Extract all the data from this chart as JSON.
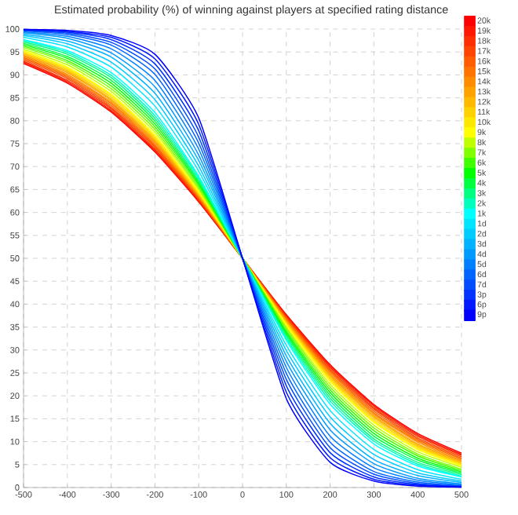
{
  "chart_data": {
    "type": "line",
    "title": "Estimated probability (%) of winning against players at specified rating distance",
    "x": [
      -500,
      -400,
      -300,
      -200,
      -100,
      0,
      100,
      200,
      300,
      400,
      500
    ],
    "xlim": [
      -500,
      500
    ],
    "xticks": [
      -500,
      -400,
      -300,
      -200,
      -100,
      0,
      100,
      200,
      300,
      400,
      500
    ],
    "ylim": [
      0,
      100
    ],
    "yticks": [
      0,
      5,
      10,
      15,
      20,
      25,
      30,
      35,
      40,
      45,
      50,
      55,
      60,
      65,
      70,
      75,
      80,
      85,
      90,
      95,
      100
    ],
    "grid": true,
    "legend": "right",
    "marker": "none",
    "line_style": "solid",
    "series": [
      {
        "name": "20k",
        "color": "#ff0000",
        "values": [
          92.5,
          88.2,
          81.9,
          73.2,
          62.3,
          50,
          37.7,
          26.8,
          18.1,
          11.8,
          7.5
        ]
      },
      {
        "name": "19k",
        "color": "#ff1700",
        "values": [
          92.8,
          88.5,
          82.2,
          73.5,
          62.5,
          50,
          37.5,
          26.5,
          17.8,
          11.5,
          7.2
        ]
      },
      {
        "name": "18k",
        "color": "#ff2e00",
        "values": [
          93,
          88.8,
          82.6,
          73.8,
          62.7,
          50,
          37.3,
          26.2,
          17.4,
          11.2,
          7
        ]
      },
      {
        "name": "17k",
        "color": "#ff4600",
        "values": [
          93.3,
          89.2,
          82.9,
          74.2,
          62.9,
          50,
          37.1,
          25.8,
          17.1,
          10.8,
          6.7
        ]
      },
      {
        "name": "16k",
        "color": "#ff5d00",
        "values": [
          93.6,
          89.5,
          83.3,
          74.5,
          63.1,
          50,
          36.9,
          25.5,
          16.7,
          10.5,
          6.4
        ]
      },
      {
        "name": "15k",
        "color": "#ff7400",
        "values": [
          93.8,
          89.8,
          83.7,
          74.8,
          63.3,
          50,
          36.7,
          25.2,
          16.3,
          10.2,
          6.2
        ]
      },
      {
        "name": "14k",
        "color": "#ff8b00",
        "values": [
          94.1,
          90.1,
          84,
          75.2,
          63.5,
          50,
          36.5,
          24.8,
          16,
          9.9,
          5.9
        ]
      },
      {
        "name": "13k",
        "color": "#ffa200",
        "values": [
          94.3,
          90.5,
          84.4,
          75.5,
          63.7,
          50,
          36.3,
          24.5,
          15.6,
          9.5,
          5.7
        ]
      },
      {
        "name": "12k",
        "color": "#ffb900",
        "values": [
          94.6,
          90.8,
          84.7,
          75.8,
          63.9,
          50,
          36.1,
          24.2,
          15.3,
          9.2,
          5.4
        ]
      },
      {
        "name": "11k",
        "color": "#ffd100",
        "values": [
          94.8,
          91.1,
          85.1,
          76.2,
          64.1,
          50,
          35.9,
          23.8,
          14.9,
          8.9,
          5.2
        ]
      },
      {
        "name": "10k",
        "color": "#ffe800",
        "values": [
          95,
          91.4,
          85.5,
          76.5,
          64.3,
          50,
          35.7,
          23.5,
          14.5,
          8.6,
          5
        ]
      },
      {
        "name": "9k",
        "color": "#ffff00",
        "values": [
          95.3,
          91.7,
          85.8,
          76.9,
          64.6,
          50,
          35.4,
          23.1,
          14.2,
          8.3,
          4.7
        ]
      },
      {
        "name": "8k",
        "color": "#bfff00",
        "values": [
          95.6,
          92.2,
          86.4,
          77.5,
          65,
          50,
          35,
          22.5,
          13.6,
          7.8,
          4.4
        ]
      },
      {
        "name": "7k",
        "color": "#80ff00",
        "values": [
          96,
          92.7,
          87,
          78.1,
          65.3,
          50,
          34.7,
          21.9,
          13,
          7.3,
          4
        ]
      },
      {
        "name": "6k",
        "color": "#40ff00",
        "values": [
          96.3,
          93.1,
          87.6,
          78.7,
          65.8,
          50,
          34.2,
          21.3,
          12.4,
          6.9,
          3.7
        ]
      },
      {
        "name": "5k",
        "color": "#00ff00",
        "values": [
          96.6,
          93.6,
          88.2,
          79.3,
          66.2,
          50,
          33.8,
          20.7,
          11.8,
          6.4,
          3.4
        ]
      },
      {
        "name": "4k",
        "color": "#00ff40",
        "values": [
          96.9,
          94,
          88.8,
          79.9,
          66.6,
          50,
          33.4,
          20.1,
          11.2,
          6,
          3.1
        ]
      },
      {
        "name": "3k",
        "color": "#00ff80",
        "values": [
          97.2,
          94.5,
          89.4,
          80.5,
          67,
          50,
          33,
          19.5,
          10.6,
          5.5,
          2.8
        ]
      },
      {
        "name": "2k",
        "color": "#00ffbf",
        "values": [
          97.5,
          94.9,
          89.9,
          81.1,
          67.5,
          50,
          32.5,
          18.9,
          10.1,
          5.1,
          2.5
        ]
      },
      {
        "name": "1k",
        "color": "#00ffff",
        "values": [
          97.7,
          95.3,
          90.5,
          81.8,
          67.9,
          50,
          32.1,
          18.2,
          9.5,
          4.7,
          2.3
        ]
      },
      {
        "name": "1d",
        "color": "#00e5ff",
        "values": [
          98.2,
          96.1,
          91.7,
          83.2,
          69,
          50,
          31,
          16.8,
          8.3,
          3.9,
          1.8
        ]
      },
      {
        "name": "2d",
        "color": "#00ccff",
        "values": [
          98.6,
          96.8,
          92.8,
          84.6,
          70.1,
          50,
          29.9,
          15.4,
          7.2,
          3.2,
          1.4
        ]
      },
      {
        "name": "3d",
        "color": "#00b2ff",
        "values": [
          98.9,
          97.4,
          93.9,
          86,
          71.3,
          50,
          28.7,
          14,
          6.1,
          2.6,
          1.1
        ]
      },
      {
        "name": "4d",
        "color": "#0099ff",
        "values": [
          99.2,
          98,
          94.8,
          87.4,
          72.5,
          50,
          27.5,
          12.6,
          5.2,
          2,
          0.8
        ]
      },
      {
        "name": "5d",
        "color": "#0080ff",
        "values": [
          99.4,
          98.4,
          95.7,
          88.8,
          73.8,
          50,
          26.2,
          11.2,
          4.3,
          1.6,
          0.6
        ]
      },
      {
        "name": "6d",
        "color": "#0066ff",
        "values": [
          99.6,
          98.8,
          96.5,
          90.1,
          75.1,
          50,
          24.9,
          9.9,
          3.5,
          1.2,
          0.4
        ]
      },
      {
        "name": "7d",
        "color": "#004cff",
        "values": [
          99.7,
          99.1,
          97.1,
          91.3,
          76.4,
          50,
          23.6,
          8.7,
          2.9,
          0.9,
          0.3
        ]
      },
      {
        "name": "3p",
        "color": "#0033ff",
        "values": [
          99.8,
          99.3,
          97.7,
          92.4,
          77.8,
          50,
          22.2,
          7.6,
          2.3,
          0.7,
          0.2
        ]
      },
      {
        "name": "6p",
        "color": "#0019ff",
        "values": [
          99.9,
          99.5,
          98.2,
          93.5,
          79.2,
          50,
          20.8,
          6.5,
          1.8,
          0.5,
          0.1
        ]
      },
      {
        "name": "9p",
        "color": "#0000ff",
        "values": [
          99.9,
          99.7,
          98.6,
          94.5,
          80.6,
          50,
          19.4,
          5.5,
          1.4,
          0.3,
          0.1
        ]
      }
    ]
  }
}
